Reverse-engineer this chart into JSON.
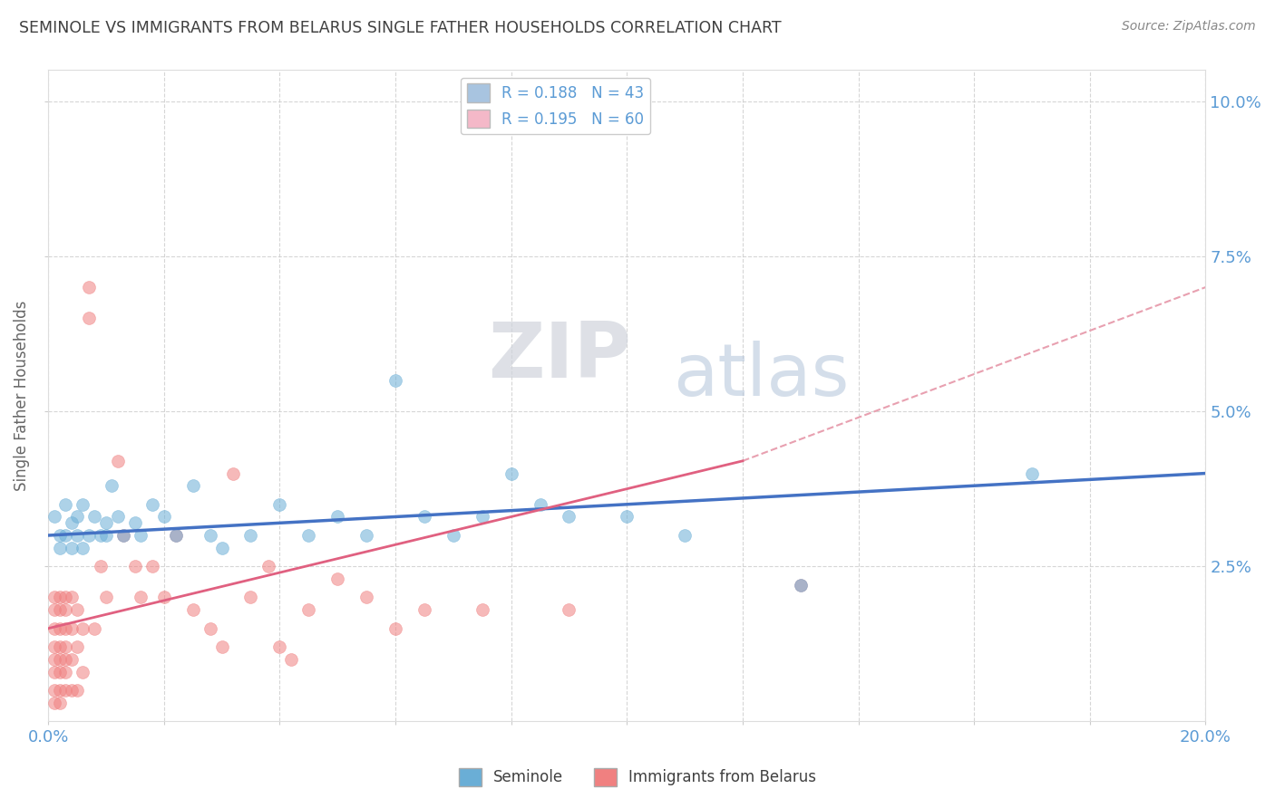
{
  "title": "SEMINOLE VS IMMIGRANTS FROM BELARUS SINGLE FATHER HOUSEHOLDS CORRELATION CHART",
  "source": "Source: ZipAtlas.com",
  "ylabel": "Single Father Households",
  "right_yticks": [
    "10.0%",
    "7.5%",
    "5.0%",
    "2.5%"
  ],
  "right_ytick_vals": [
    0.1,
    0.075,
    0.05,
    0.025
  ],
  "legend_entries": [
    {
      "label": "R = 0.188   N = 43",
      "color": "#a8c4e0"
    },
    {
      "label": "R = 0.195   N = 60",
      "color": "#f4b8c8"
    }
  ],
  "legend_labels_bottom": [
    "Seminole",
    "Immigrants from Belarus"
  ],
  "seminole_color": "#6aaed6",
  "belarus_color": "#f08080",
  "seminole_line_color": "#4472c4",
  "belarus_line_color": "#e06080",
  "belarus_dashed_color": "#e8a0b0",
  "background_color": "#ffffff",
  "grid_color": "#cccccc",
  "title_color": "#404040",
  "axis_color": "#5b9bd5",
  "seminole_points": [
    [
      0.001,
      0.033
    ],
    [
      0.002,
      0.03
    ],
    [
      0.002,
      0.028
    ],
    [
      0.003,
      0.035
    ],
    [
      0.003,
      0.03
    ],
    [
      0.004,
      0.032
    ],
    [
      0.004,
      0.028
    ],
    [
      0.005,
      0.033
    ],
    [
      0.005,
      0.03
    ],
    [
      0.006,
      0.028
    ],
    [
      0.006,
      0.035
    ],
    [
      0.007,
      0.03
    ],
    [
      0.008,
      0.033
    ],
    [
      0.009,
      0.03
    ],
    [
      0.01,
      0.032
    ],
    [
      0.01,
      0.03
    ],
    [
      0.011,
      0.038
    ],
    [
      0.012,
      0.033
    ],
    [
      0.013,
      0.03
    ],
    [
      0.015,
      0.032
    ],
    [
      0.016,
      0.03
    ],
    [
      0.018,
      0.035
    ],
    [
      0.02,
      0.033
    ],
    [
      0.022,
      0.03
    ],
    [
      0.025,
      0.038
    ],
    [
      0.028,
      0.03
    ],
    [
      0.03,
      0.028
    ],
    [
      0.035,
      0.03
    ],
    [
      0.04,
      0.035
    ],
    [
      0.045,
      0.03
    ],
    [
      0.05,
      0.033
    ],
    [
      0.055,
      0.03
    ],
    [
      0.06,
      0.055
    ],
    [
      0.065,
      0.033
    ],
    [
      0.07,
      0.03
    ],
    [
      0.075,
      0.033
    ],
    [
      0.08,
      0.04
    ],
    [
      0.085,
      0.035
    ],
    [
      0.09,
      0.033
    ],
    [
      0.1,
      0.033
    ],
    [
      0.11,
      0.03
    ],
    [
      0.13,
      0.022
    ],
    [
      0.17,
      0.04
    ]
  ],
  "belarus_points": [
    [
      0.001,
      0.02
    ],
    [
      0.001,
      0.018
    ],
    [
      0.001,
      0.015
    ],
    [
      0.001,
      0.012
    ],
    [
      0.001,
      0.01
    ],
    [
      0.001,
      0.008
    ],
    [
      0.001,
      0.005
    ],
    [
      0.001,
      0.003
    ],
    [
      0.002,
      0.02
    ],
    [
      0.002,
      0.018
    ],
    [
      0.002,
      0.015
    ],
    [
      0.002,
      0.012
    ],
    [
      0.002,
      0.01
    ],
    [
      0.002,
      0.008
    ],
    [
      0.002,
      0.005
    ],
    [
      0.002,
      0.003
    ],
    [
      0.003,
      0.02
    ],
    [
      0.003,
      0.018
    ],
    [
      0.003,
      0.015
    ],
    [
      0.003,
      0.012
    ],
    [
      0.003,
      0.01
    ],
    [
      0.003,
      0.008
    ],
    [
      0.003,
      0.005
    ],
    [
      0.004,
      0.02
    ],
    [
      0.004,
      0.015
    ],
    [
      0.004,
      0.01
    ],
    [
      0.004,
      0.005
    ],
    [
      0.005,
      0.018
    ],
    [
      0.005,
      0.012
    ],
    [
      0.005,
      0.005
    ],
    [
      0.006,
      0.015
    ],
    [
      0.006,
      0.008
    ],
    [
      0.007,
      0.07
    ],
    [
      0.007,
      0.065
    ],
    [
      0.008,
      0.015
    ],
    [
      0.009,
      0.025
    ],
    [
      0.01,
      0.02
    ],
    [
      0.012,
      0.042
    ],
    [
      0.013,
      0.03
    ],
    [
      0.015,
      0.025
    ],
    [
      0.016,
      0.02
    ],
    [
      0.018,
      0.025
    ],
    [
      0.02,
      0.02
    ],
    [
      0.022,
      0.03
    ],
    [
      0.025,
      0.018
    ],
    [
      0.028,
      0.015
    ],
    [
      0.03,
      0.012
    ],
    [
      0.032,
      0.04
    ],
    [
      0.035,
      0.02
    ],
    [
      0.038,
      0.025
    ],
    [
      0.04,
      0.012
    ],
    [
      0.042,
      0.01
    ],
    [
      0.045,
      0.018
    ],
    [
      0.05,
      0.023
    ],
    [
      0.055,
      0.02
    ],
    [
      0.06,
      0.015
    ],
    [
      0.065,
      0.018
    ],
    [
      0.075,
      0.018
    ],
    [
      0.09,
      0.018
    ],
    [
      0.13,
      0.022
    ]
  ],
  "xmin": 0.0,
  "xmax": 0.2,
  "ymin": 0.0,
  "ymax": 0.105
}
